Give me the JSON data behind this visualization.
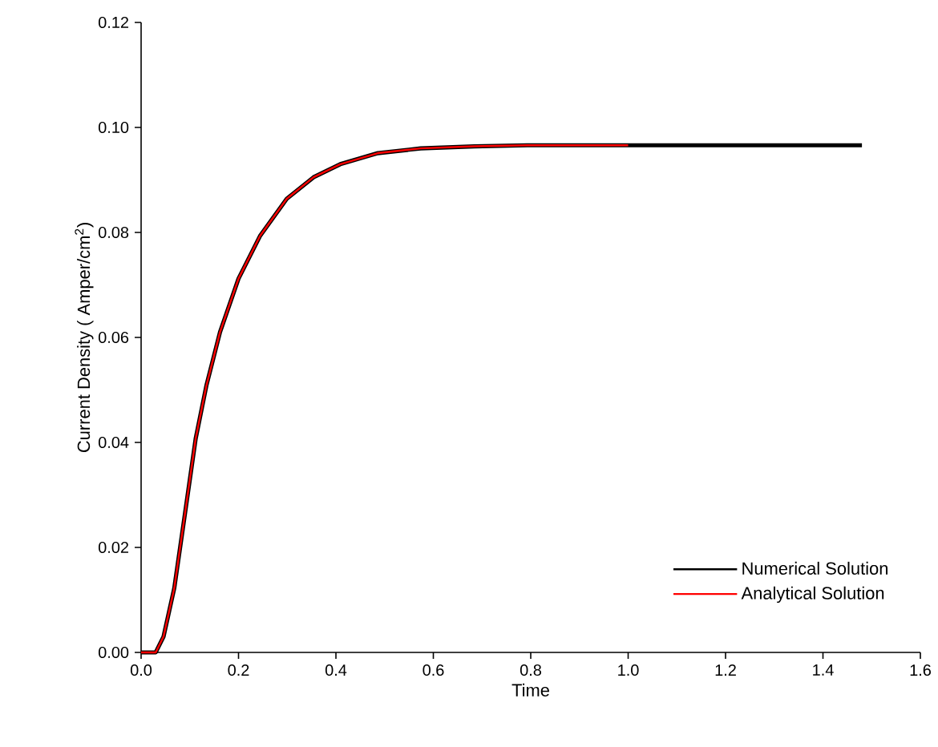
{
  "chart_data": {
    "type": "line",
    "xlabel": "Time",
    "ylabel": "Current Density ( Amper/cm$^{2}$)",
    "xlim": [
      0,
      1.6
    ],
    "ylim": [
      0,
      0.12
    ],
    "xticks": [
      {
        "value": 0,
        "label": "0.0"
      },
      0.2,
      0.4,
      0.6,
      0.8,
      {
        "value": 1,
        "label": "1.0"
      },
      1.2,
      1.4,
      1.6
    ],
    "yticks": [
      {
        "value": 0,
        "label": "0.00"
      },
      0.02,
      0.04,
      0.06,
      0.08,
      {
        "value": 0.1,
        "label": "0.10"
      },
      0.12
    ],
    "legend": "bottom right",
    "grid": false,
    "marker": "none",
    "line_style": "solid",
    "series": [
      {
        "name": "Numerical Solution",
        "color": "#000000",
        "x": [
          0,
          0.03,
          0.046,
          0.068,
          0.09,
          0.112,
          0.134,
          0.162,
          0.2,
          0.244,
          0.299,
          0.354,
          0.409,
          0.486,
          0.574,
          0.684,
          0.793,
          1.0,
          1.2,
          1.48
        ],
        "values": [
          0,
          0,
          0.003,
          0.0122,
          0.0264,
          0.0407,
          0.0508,
          0.061,
          0.0712,
          0.0793,
          0.0864,
          0.0905,
          0.093,
          0.0951,
          0.096,
          0.0964,
          0.0966,
          0.0966,
          0.0966,
          0.0966
        ]
      },
      {
        "name": "Analytical Solution",
        "color": "#ff0000",
        "x": [
          0,
          0.03,
          0.046,
          0.068,
          0.09,
          0.112,
          0.134,
          0.162,
          0.2,
          0.244,
          0.299,
          0.354,
          0.409,
          0.486,
          0.574,
          0.684,
          0.793,
          1.0
        ],
        "values": [
          0,
          0,
          0.003,
          0.0122,
          0.0264,
          0.0407,
          0.0508,
          0.061,
          0.0712,
          0.0793,
          0.0864,
          0.0905,
          0.093,
          0.0951,
          0.096,
          0.0964,
          0.0966,
          0.0966
        ]
      }
    ]
  }
}
